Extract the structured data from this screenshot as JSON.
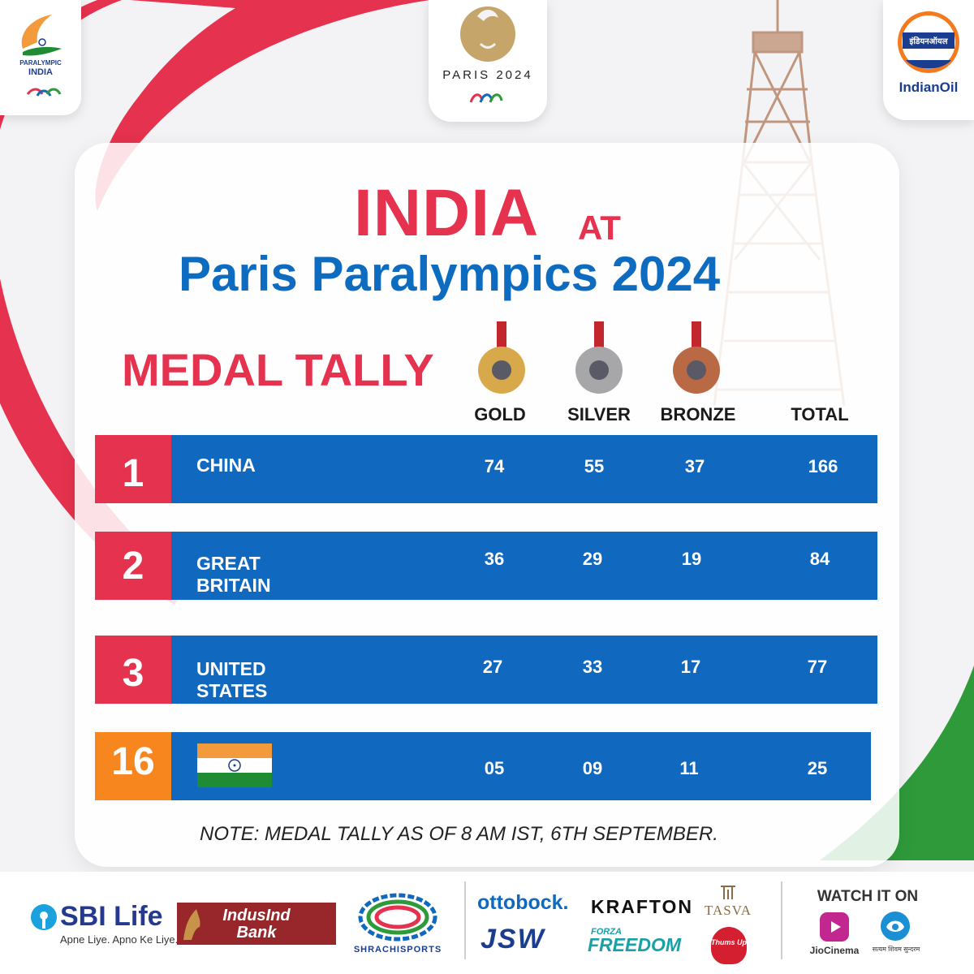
{
  "header": {
    "logo_left_lines": [
      "PARALYMPIC",
      "INDIA"
    ],
    "logo_center_text": "PARIS 2024",
    "logo_right_hindi": "इंडियनऑयल",
    "logo_right_text": "IndianOil"
  },
  "title": {
    "india": "INDIA",
    "at": "AT",
    "subtitle": "Paris Paralympics 2024"
  },
  "section_title": "MEDAL TALLY",
  "columns": {
    "gold": "GOLD",
    "silver": "SILVER",
    "bronze": "BRONZE",
    "total": "TOTAL"
  },
  "colors": {
    "red": "#e5324e",
    "blue": "#1069bf",
    "orange": "#f7861e",
    "green": "#2e9a3a",
    "flag_saffron": "#f39a3d",
    "flag_green": "#1f8b32"
  },
  "rows": [
    {
      "rank": "1",
      "country": "CHINA",
      "gold": "74",
      "silver": "55",
      "bronze": "37",
      "total": "166"
    },
    {
      "rank": "2",
      "country": "GREAT BRITAIN",
      "gold": "36",
      "silver": "29",
      "bronze": "19",
      "total": "84"
    },
    {
      "rank": "3",
      "country": "UNITED STATES",
      "gold": "27",
      "silver": "33",
      "bronze": "17",
      "total": "77"
    },
    {
      "rank": "16",
      "country_flag": "india-flag",
      "gold": "05",
      "silver": "09",
      "bronze": "11",
      "total": "25"
    }
  ],
  "note": "NOTE: MEDAL TALLY AS OF 8 AM IST, 6TH SEPTEMBER.",
  "sponsors": {
    "sbi": "SBI Life",
    "sbi_tag": "Apne Liye. Apno Ke Liye.",
    "indusind": [
      "IndusInd",
      "Bank"
    ],
    "shrachi": "SHRACHISPORTS",
    "ottobock": "ottobock.",
    "krafton": "KRAFTON",
    "tasva": "TASVA",
    "jsw": "JSW",
    "forza_small": "FORZA",
    "forza_big": "FREEDOM",
    "thumsup": "Thums Up",
    "watch": "WATCH IT ON",
    "jiocinema": "JioCinema",
    "doordarshan": "सत्यम शिवम सुन्दरम"
  }
}
